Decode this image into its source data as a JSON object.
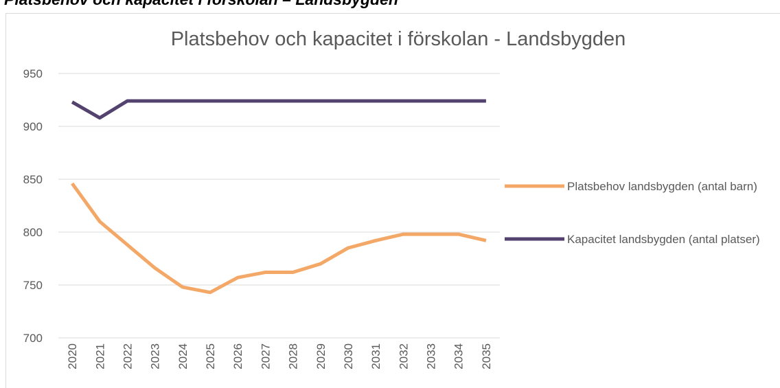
{
  "heading": "Platsbehov och kapacitet i förskolan – Landsbygden",
  "chart_data": {
    "type": "line",
    "title": "Platsbehov och kapacitet i förskolan - Landsbygden",
    "categories": [
      "2020",
      "2021",
      "2022",
      "2023",
      "2024",
      "2025",
      "2026",
      "2027",
      "2028",
      "2029",
      "2030",
      "2031",
      "2032",
      "2033",
      "2034",
      "2035"
    ],
    "series": [
      {
        "name": "Platsbehov landsbygden (antal barn)",
        "color": "#f4a867",
        "values": [
          846,
          810,
          788,
          766,
          748,
          743,
          757,
          762,
          762,
          770,
          785,
          792,
          798,
          798,
          798,
          792
        ]
      },
      {
        "name": "Kapacitet landsbygden (antal platser)",
        "color": "#54426e",
        "values": [
          923,
          908,
          924,
          924,
          924,
          924,
          924,
          924,
          924,
          924,
          924,
          924,
          924,
          924,
          924,
          924
        ]
      }
    ],
    "ylim": [
      700,
      950
    ],
    "yticks": [
      700,
      750,
      800,
      850,
      900,
      950
    ],
    "grid": true,
    "legend": "right"
  }
}
